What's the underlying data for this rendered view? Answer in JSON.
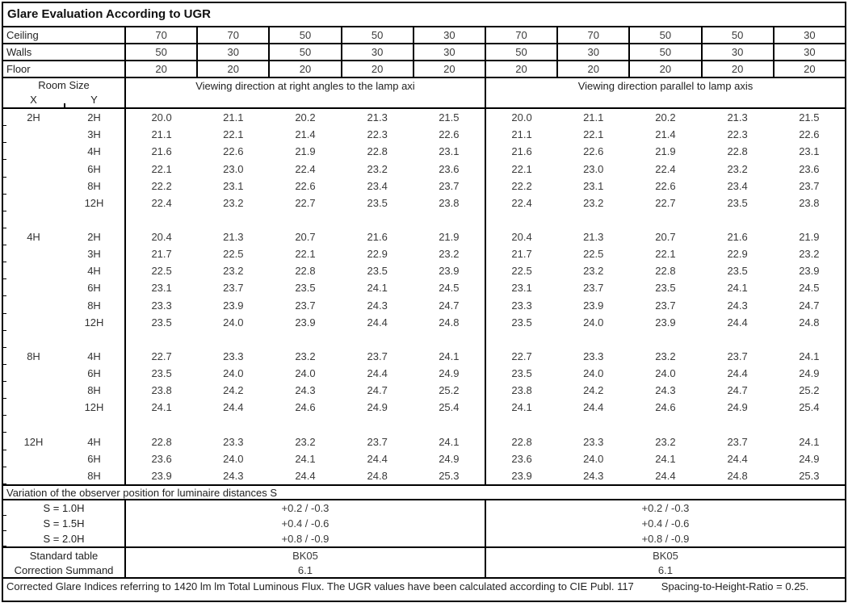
{
  "title": "Glare Evaluation According to UGR",
  "colors": {
    "border": "#000000",
    "label_text": "#222222",
    "value_text": "#3a3a3a",
    "background": "#ffffff"
  },
  "reflectances": {
    "rows": [
      {
        "label": "Ceiling",
        "values": [
          "70",
          "70",
          "50",
          "50",
          "30",
          "70",
          "70",
          "50",
          "50",
          "30"
        ]
      },
      {
        "label": "Walls",
        "values": [
          "50",
          "30",
          "50",
          "30",
          "30",
          "50",
          "30",
          "50",
          "30",
          "30"
        ]
      },
      {
        "label": "Floor",
        "values": [
          "20",
          "20",
          "20",
          "20",
          "20",
          "20",
          "20",
          "20",
          "20",
          "20"
        ]
      }
    ]
  },
  "header": {
    "room_size": "Room Size",
    "x": "X",
    "y": "Y",
    "left_title": "Viewing direction at right angles to the lamp axi",
    "right_title": "Viewing direction parallel to lamp axis"
  },
  "groups": [
    {
      "x": "2H",
      "rows": [
        {
          "y": "2H",
          "left": [
            "20.0",
            "21.1",
            "20.2",
            "21.3",
            "21.5"
          ],
          "right": [
            "20.0",
            "21.1",
            "20.2",
            "21.3",
            "21.5"
          ]
        },
        {
          "y": "3H",
          "left": [
            "21.1",
            "22.1",
            "21.4",
            "22.3",
            "22.6"
          ],
          "right": [
            "21.1",
            "22.1",
            "21.4",
            "22.3",
            "22.6"
          ]
        },
        {
          "y": "4H",
          "left": [
            "21.6",
            "22.6",
            "21.9",
            "22.8",
            "23.1"
          ],
          "right": [
            "21.6",
            "22.6",
            "21.9",
            "22.8",
            "23.1"
          ]
        },
        {
          "y": "6H",
          "left": [
            "22.1",
            "23.0",
            "22.4",
            "23.2",
            "23.6"
          ],
          "right": [
            "22.1",
            "23.0",
            "22.4",
            "23.2",
            "23.6"
          ]
        },
        {
          "y": "8H",
          "left": [
            "22.2",
            "23.1",
            "22.6",
            "23.4",
            "23.7"
          ],
          "right": [
            "22.2",
            "23.1",
            "22.6",
            "23.4",
            "23.7"
          ]
        },
        {
          "y": "12H",
          "left": [
            "22.4",
            "23.2",
            "22.7",
            "23.5",
            "23.8"
          ],
          "right": [
            "22.4",
            "23.2",
            "22.7",
            "23.5",
            "23.8"
          ]
        }
      ]
    },
    {
      "x": "4H",
      "rows": [
        {
          "y": "2H",
          "left": [
            "20.4",
            "21.3",
            "20.7",
            "21.6",
            "21.9"
          ],
          "right": [
            "20.4",
            "21.3",
            "20.7",
            "21.6",
            "21.9"
          ]
        },
        {
          "y": "3H",
          "left": [
            "21.7",
            "22.5",
            "22.1",
            "22.9",
            "23.2"
          ],
          "right": [
            "21.7",
            "22.5",
            "22.1",
            "22.9",
            "23.2"
          ]
        },
        {
          "y": "4H",
          "left": [
            "22.5",
            "23.2",
            "22.8",
            "23.5",
            "23.9"
          ],
          "right": [
            "22.5",
            "23.2",
            "22.8",
            "23.5",
            "23.9"
          ]
        },
        {
          "y": "6H",
          "left": [
            "23.1",
            "23.7",
            "23.5",
            "24.1",
            "24.5"
          ],
          "right": [
            "23.1",
            "23.7",
            "23.5",
            "24.1",
            "24.5"
          ]
        },
        {
          "y": "8H",
          "left": [
            "23.3",
            "23.9",
            "23.7",
            "24.3",
            "24.7"
          ],
          "right": [
            "23.3",
            "23.9",
            "23.7",
            "24.3",
            "24.7"
          ]
        },
        {
          "y": "12H",
          "left": [
            "23.5",
            "24.0",
            "23.9",
            "24.4",
            "24.8"
          ],
          "right": [
            "23.5",
            "24.0",
            "23.9",
            "24.4",
            "24.8"
          ]
        }
      ]
    },
    {
      "x": "8H",
      "rows": [
        {
          "y": "4H",
          "left": [
            "22.7",
            "23.3",
            "23.2",
            "23.7",
            "24.1"
          ],
          "right": [
            "22.7",
            "23.3",
            "23.2",
            "23.7",
            "24.1"
          ]
        },
        {
          "y": "6H",
          "left": [
            "23.5",
            "24.0",
            "24.0",
            "24.4",
            "24.9"
          ],
          "right": [
            "23.5",
            "24.0",
            "24.0",
            "24.4",
            "24.9"
          ]
        },
        {
          "y": "8H",
          "left": [
            "23.8",
            "24.2",
            "24.3",
            "24.7",
            "25.2"
          ],
          "right": [
            "23.8",
            "24.2",
            "24.3",
            "24.7",
            "25.2"
          ]
        },
        {
          "y": "12H",
          "left": [
            "24.1",
            "24.4",
            "24.6",
            "24.9",
            "25.4"
          ],
          "right": [
            "24.1",
            "24.4",
            "24.6",
            "24.9",
            "25.4"
          ]
        }
      ]
    },
    {
      "x": "12H",
      "rows": [
        {
          "y": "4H",
          "left": [
            "22.8",
            "23.3",
            "23.2",
            "23.7",
            "24.1"
          ],
          "right": [
            "22.8",
            "23.3",
            "23.2",
            "23.7",
            "24.1"
          ]
        },
        {
          "y": "6H",
          "left": [
            "23.6",
            "24.0",
            "24.1",
            "24.4",
            "24.9"
          ],
          "right": [
            "23.6",
            "24.0",
            "24.1",
            "24.4",
            "24.9"
          ]
        },
        {
          "y": "8H",
          "left": [
            "23.9",
            "24.3",
            "24.4",
            "24.8",
            "25.3"
          ],
          "right": [
            "23.9",
            "24.3",
            "24.4",
            "24.8",
            "25.3"
          ]
        }
      ]
    }
  ],
  "variation": {
    "title": "Variation of the observer position for luminaire distances S",
    "rows": [
      {
        "label": "S = 1.0H",
        "left": "+0.2 / -0.3",
        "right": "+0.2 / -0.3"
      },
      {
        "label": "S = 1.5H",
        "left": "+0.4 / -0.6",
        "right": "+0.4 / -0.6"
      },
      {
        "label": "S = 2.0H",
        "left": "+0.8 / -0.9",
        "right": "+0.8 / -0.9"
      }
    ]
  },
  "summary": {
    "rows": [
      {
        "label": "Standard table",
        "left": "BK05",
        "right": "BK05"
      },
      {
        "label": "Correction Summand",
        "left": "6.1",
        "right": "6.1"
      }
    ]
  },
  "footer": {
    "note": "Corrected Glare Indices referring to 1420 lm lm Total Luminous Flux. The UGR values have been calculated according to CIE Publ. 117",
    "ratio": "Spacing-to-Height-Ratio = 0.25."
  }
}
